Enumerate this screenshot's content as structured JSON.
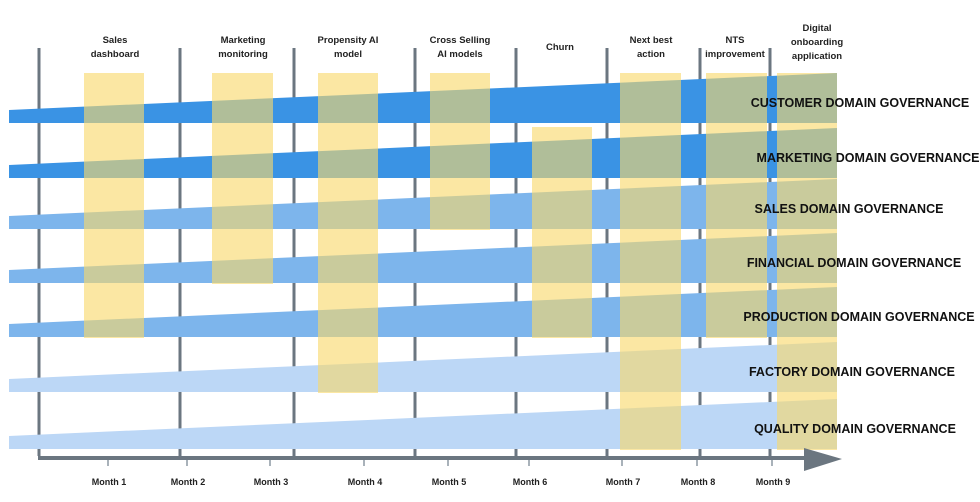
{
  "projects": [
    {
      "label": [
        "Sales",
        "dashboard"
      ],
      "lanes": 5
    },
    {
      "label": [
        "Marketing",
        "monitoring"
      ],
      "lanes": 4
    },
    {
      "label": [
        "Propensity AI",
        "model"
      ],
      "lanes": 6
    },
    {
      "label": [
        "Cross Selling",
        "AI models"
      ],
      "lanes": 3
    },
    {
      "label": [
        "Churn"
      ],
      "lanes": 4,
      "start_lane": 1
    },
    {
      "label": [
        "Next best",
        "action"
      ],
      "lanes": 7
    },
    {
      "label": [
        "NTS",
        "improvement"
      ],
      "lanes": 5
    },
    {
      "label": [
        "Digital",
        "onboarding",
        "application"
      ],
      "lanes": 7
    }
  ],
  "lanes": [
    {
      "label": "CUSTOMER DOMAIN GOVERNANCE",
      "color": "#3a93e4"
    },
    {
      "label": "MARKETING DOMAIN GOVERNANCE",
      "color": "#3a93e4"
    },
    {
      "label": "SALES DOMAIN GOVERNANCE",
      "color": "#7db5ec"
    },
    {
      "label": "FINANCIAL DOMAIN GOVERNANCE",
      "color": "#7db5ec"
    },
    {
      "label": "PRODUCTION DOMAIN GOVERNANCE",
      "color": "#7db5ec"
    },
    {
      "label": "FACTORY DOMAIN GOVERNANCE",
      "color": "#bcd7f6"
    },
    {
      "label": "QUALITY DOMAIN GOVERNANCE",
      "color": "#bcd7f6"
    }
  ],
  "months": [
    "Month 1",
    "Month 2",
    "Month 3",
    "Month 4",
    "Month 5",
    "Month 6",
    "Month 7",
    "Month 8",
    "Month 9"
  ],
  "colors": {
    "project_bar": "#f9d96b",
    "gridline": "#6b7680",
    "axis": "#6b7680"
  }
}
